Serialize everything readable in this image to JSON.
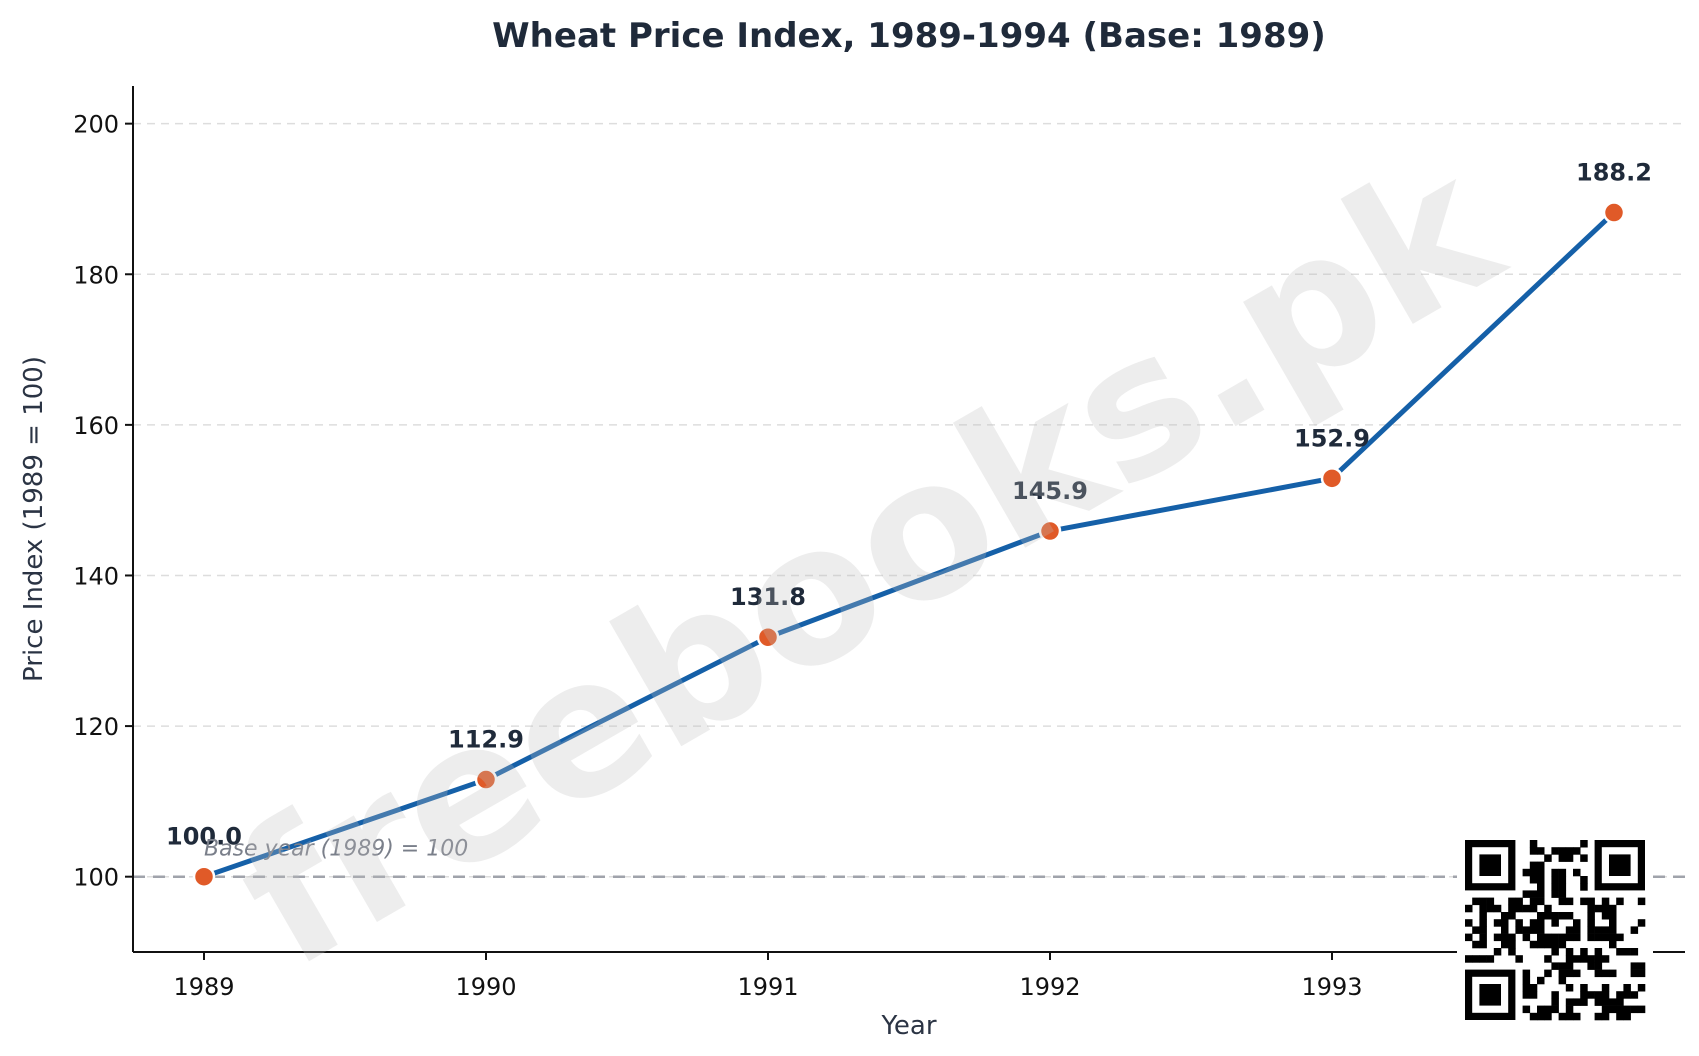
{
  "chart_data": {
    "type": "line",
    "title": "Wheat Price Index, 1989-1994 (Base: 1989)",
    "xlabel": "Year",
    "ylabel": "Price Index (1989 = 100)",
    "x": [
      1989,
      1990,
      1991,
      1992,
      1993,
      1994
    ],
    "x_tick_labels": [
      "1989",
      "1990",
      "1991",
      "1992",
      "1993"
    ],
    "ylim": [
      90,
      205
    ],
    "y_ticks": [
      100,
      120,
      140,
      160,
      180,
      200
    ],
    "series": [
      {
        "values": [
          100.0,
          112.9,
          131.8,
          145.9,
          152.9,
          188.2
        ],
        "data_labels": [
          "100.0",
          "112.9",
          "131.8",
          "145.9",
          "152.9",
          "188.2"
        ]
      }
    ],
    "reference_line": {
      "y": 100,
      "label": "Base year (1989) = 100",
      "style": "dashed"
    },
    "grid": {
      "y": true,
      "x": false,
      "style": "dashed"
    },
    "legend": "none",
    "colors": {
      "line": "#1560a8",
      "marker": "#e05a28",
      "marker_edge": "#ffffff",
      "reference": "#a0a3ab",
      "grid": "#dddddd"
    }
  },
  "watermark": {
    "text": "freebooks.pk"
  },
  "qr_code": {
    "icon": "qr-code-icon"
  }
}
